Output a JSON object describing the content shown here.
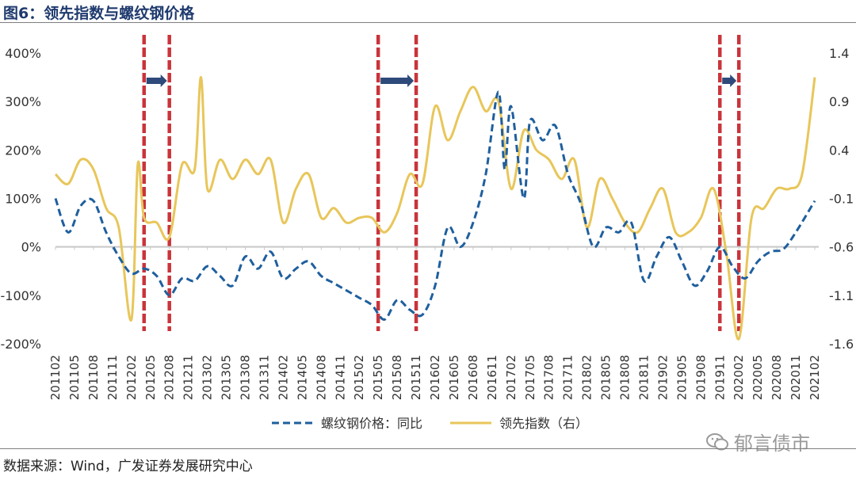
{
  "title": "图6：领先指数与螺纹钢价格",
  "source": "数据来源：Wind，广发证券发展研究中心",
  "watermark": "郁言债市",
  "colors": {
    "series1": "#1f5f9e",
    "series2": "#e8c65a",
    "band": "#c9343a",
    "arrow": "#2e4a7a",
    "zero": "#c8c8c8"
  },
  "chart_data": {
    "type": "line",
    "x_tick_labels": [
      "201102",
      "201105",
      "201108",
      "201111",
      "201202",
      "201205",
      "201208",
      "201211",
      "201302",
      "201305",
      "201308",
      "201311",
      "201402",
      "201405",
      "201408",
      "201411",
      "201502",
      "201505",
      "201508",
      "201511",
      "201602",
      "201605",
      "201608",
      "201611",
      "201702",
      "201705",
      "201708",
      "201711",
      "201802",
      "201805",
      "201808",
      "201811",
      "201902",
      "201905",
      "201908",
      "201911",
      "202002",
      "202005",
      "202008",
      "202011",
      "202102"
    ],
    "x_range": [
      "2011-02",
      "2021-02"
    ],
    "y_left": {
      "range": [
        -2,
        4
      ],
      "ticks": [
        "400%",
        "300%",
        "200%",
        "100%",
        "0%",
        "-100%",
        "-200%"
      ]
    },
    "y_right": {
      "range": [
        -1.6,
        1.4
      ],
      "ticks": [
        "1.4",
        "0.9",
        "0.4",
        "-0.1",
        "-0.6",
        "-1.1",
        "-1.6"
      ]
    },
    "series": [
      {
        "name": "螺纹钢价格：同比",
        "axis": "left",
        "style": "dashed",
        "x": [
          "2011-02",
          "2011-04",
          "2011-06",
          "2011-08",
          "2011-10",
          "2011-12",
          "2012-02",
          "2012-04",
          "2012-06",
          "2012-08",
          "2012-10",
          "2012-12",
          "2013-02",
          "2013-04",
          "2013-06",
          "2013-08",
          "2013-10",
          "2013-12",
          "2014-02",
          "2014-04",
          "2014-06",
          "2014-08",
          "2014-10",
          "2014-12",
          "2015-02",
          "2015-04",
          "2015-06",
          "2015-08",
          "2015-10",
          "2015-12",
          "2016-02",
          "2016-04",
          "2016-06",
          "2016-08",
          "2016-10",
          "2016-12",
          "2017-01",
          "2017-02",
          "2017-04",
          "2017-05",
          "2017-07",
          "2017-09",
          "2017-11",
          "2018-01",
          "2018-03",
          "2018-05",
          "2018-07",
          "2018-09",
          "2018-11",
          "2019-01",
          "2019-03",
          "2019-05",
          "2019-07",
          "2019-09",
          "2019-11",
          "2020-01",
          "2020-03",
          "2020-05",
          "2020-07",
          "2020-09",
          "2020-11",
          "2021-02"
        ],
        "y": [
          1.0,
          0.3,
          0.85,
          0.95,
          0.3,
          -0.2,
          -0.55,
          -0.45,
          -0.6,
          -1.0,
          -0.65,
          -0.7,
          -0.4,
          -0.6,
          -0.8,
          -0.2,
          -0.45,
          -0.1,
          -0.65,
          -0.45,
          -0.3,
          -0.6,
          -0.75,
          -0.9,
          -1.05,
          -1.2,
          -1.5,
          -1.1,
          -1.3,
          -1.4,
          -0.8,
          0.4,
          0.0,
          0.5,
          1.5,
          3.2,
          1.6,
          2.9,
          1.0,
          2.6,
          2.2,
          2.5,
          1.5,
          0.9,
          0.0,
          0.4,
          0.3,
          0.5,
          -0.7,
          -0.2,
          0.2,
          -0.3,
          -0.8,
          -0.5,
          0.0,
          -0.4,
          -0.65,
          -0.3,
          -0.1,
          -0.05,
          0.3,
          0.95
        ]
      },
      {
        "name": "领先指数（右）",
        "axis": "right",
        "style": "solid",
        "x": [
          "2011-02",
          "2011-04",
          "2011-06",
          "2011-08",
          "2011-10",
          "2011-12",
          "2012-02",
          "2012-03",
          "2012-04",
          "2012-06",
          "2012-08",
          "2012-10",
          "2012-12",
          "2013-01",
          "2013-02",
          "2013-04",
          "2013-06",
          "2013-08",
          "2013-10",
          "2013-12",
          "2014-02",
          "2014-04",
          "2014-06",
          "2014-08",
          "2014-10",
          "2014-12",
          "2015-02",
          "2015-04",
          "2015-06",
          "2015-08",
          "2015-10",
          "2015-12",
          "2016-02",
          "2016-04",
          "2016-06",
          "2016-08",
          "2016-10",
          "2016-12",
          "2017-02",
          "2017-04",
          "2017-06",
          "2017-08",
          "2017-10",
          "2017-12",
          "2018-02",
          "2018-04",
          "2018-06",
          "2018-08",
          "2018-10",
          "2018-12",
          "2019-02",
          "2019-04",
          "2019-06",
          "2019-08",
          "2019-10",
          "2019-12",
          "2020-02",
          "2020-04",
          "2020-06",
          "2020-08",
          "2020-10",
          "2020-12",
          "2021-02"
        ],
        "y": [
          0.15,
          0.05,
          0.3,
          0.2,
          -0.2,
          -0.4,
          -1.35,
          0.25,
          -0.3,
          -0.35,
          -0.5,
          0.25,
          0.2,
          1.15,
          0.0,
          0.3,
          0.1,
          0.3,
          0.15,
          0.3,
          -0.35,
          0.0,
          0.15,
          -0.3,
          -0.2,
          -0.35,
          -0.3,
          -0.3,
          -0.45,
          -0.25,
          0.15,
          0.05,
          0.85,
          0.5,
          0.8,
          1.05,
          0.8,
          0.9,
          0.0,
          0.6,
          0.4,
          0.3,
          0.1,
          0.3,
          -0.4,
          0.1,
          -0.1,
          -0.35,
          -0.45,
          -0.2,
          0.0,
          -0.45,
          -0.45,
          -0.3,
          0.0,
          -0.65,
          -1.55,
          -0.3,
          -0.2,
          0.0,
          0.0,
          0.15,
          1.15
        ]
      }
    ],
    "bands": [
      {
        "start": "2012-04",
        "end": "2012-08"
      },
      {
        "start": "2015-05",
        "end": "2015-11"
      },
      {
        "start": "2019-11",
        "end": "2020-02"
      }
    ],
    "legend": {
      "position": "bottom"
    },
    "grid": false
  }
}
